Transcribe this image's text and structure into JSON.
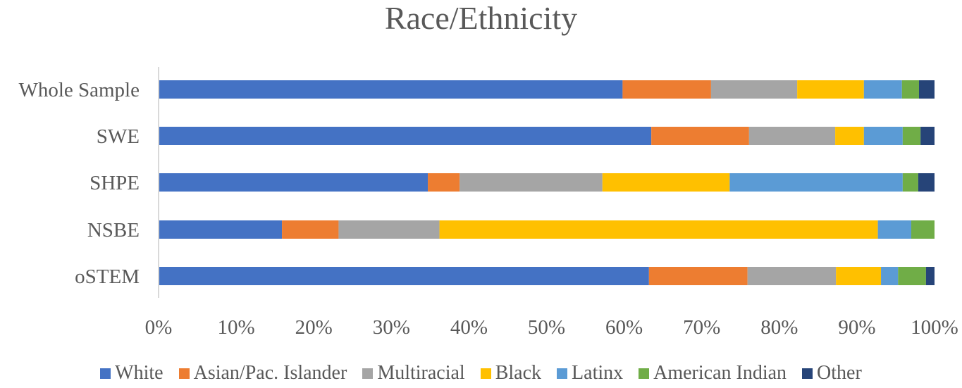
{
  "chart_data": {
    "type": "bar",
    "orientation": "horizontal",
    "stacked": "100%",
    "title": "Race/Ethnicity",
    "xlabel": "",
    "ylabel": "",
    "xlim": [
      0,
      100
    ],
    "x_ticks": [
      "0%",
      "10%",
      "20%",
      "30%",
      "40%",
      "50%",
      "60%",
      "70%",
      "80%",
      "90%",
      "100%"
    ],
    "categories": [
      "Whole Sample",
      "SWE",
      "SHPE",
      "NSBE",
      "oSTEM"
    ],
    "series": [
      {
        "name": "White",
        "color": "#4472C4",
        "values": [
          59.8,
          63.5,
          34.7,
          15.9,
          63.2
        ]
      },
      {
        "name": "Asian/Pac. Islander",
        "color": "#ED7D31",
        "values": [
          11.4,
          12.6,
          4.1,
          7.3,
          12.7
        ]
      },
      {
        "name": "Multiracial",
        "color": "#A5A5A5",
        "values": [
          11.1,
          11.1,
          18.4,
          13.0,
          11.4
        ]
      },
      {
        "name": "Black",
        "color": "#FFC000",
        "values": [
          8.6,
          3.7,
          16.4,
          56.5,
          5.8
        ]
      },
      {
        "name": "Latinx",
        "color": "#5B9BD5",
        "values": [
          4.9,
          5.0,
          22.3,
          4.3,
          2.2
        ]
      },
      {
        "name": "American Indian",
        "color": "#70AD47",
        "values": [
          2.2,
          2.3,
          2.0,
          3.0,
          3.6
        ]
      },
      {
        "name": "Other",
        "color": "#264478",
        "values": [
          2.0,
          1.8,
          2.1,
          0.0,
          1.1
        ]
      }
    ],
    "legend_position": "bottom",
    "grid": false
  }
}
